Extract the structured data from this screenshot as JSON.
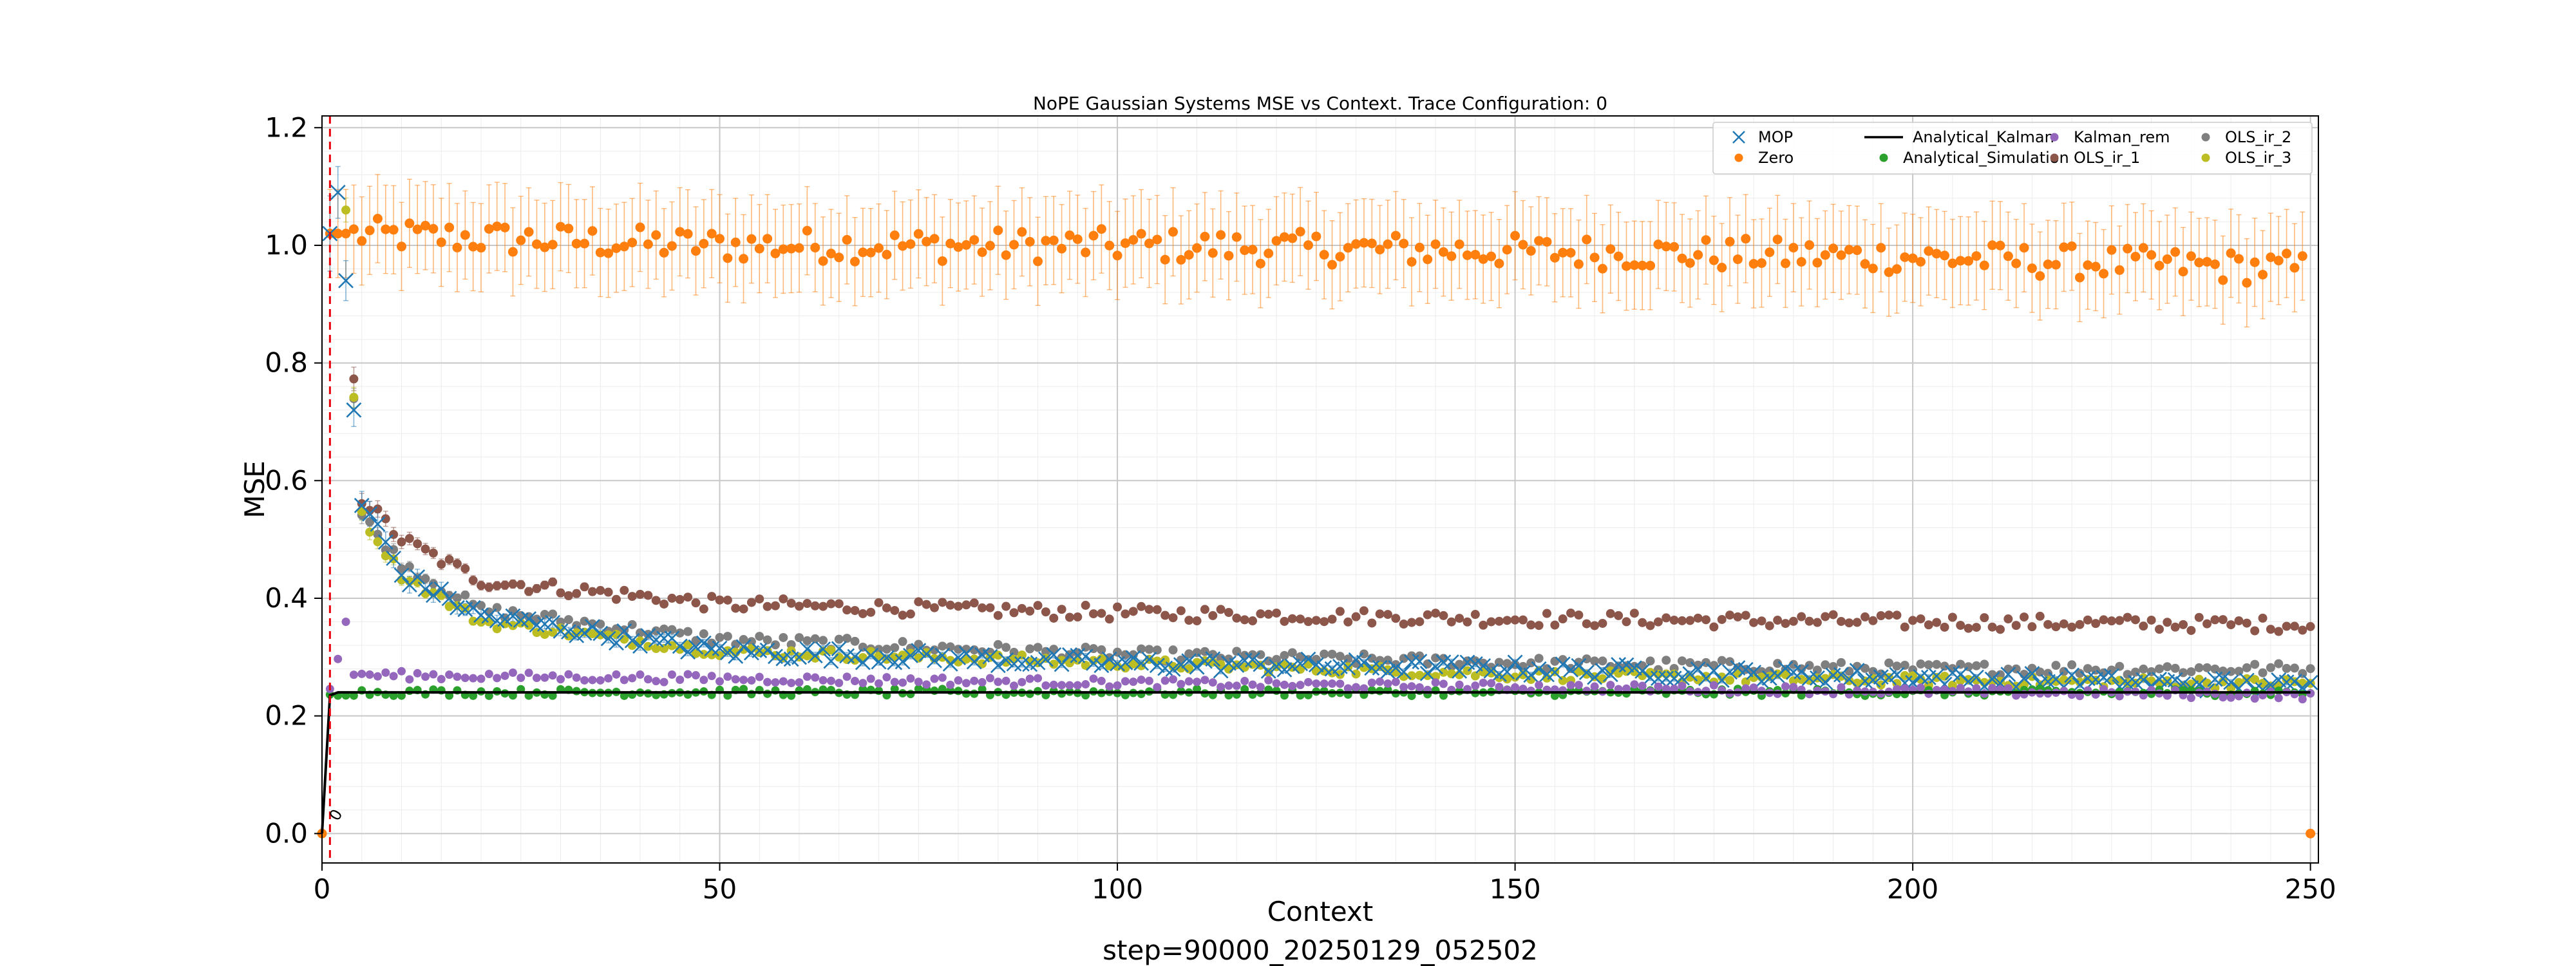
{
  "chart_data": {
    "type": "scatter",
    "title": "NoPE Gaussian Systems MSE vs Context. Trace Configuration: 0",
    "xlabel": "Context",
    "ylabel": "MSE",
    "footer": "step=90000_20250129_052502",
    "xlim": [
      0,
      251
    ],
    "ylim": [
      -0.05,
      1.22
    ],
    "xticks": [
      0,
      50,
      100,
      150,
      200,
      250
    ],
    "yticks": [
      0.0,
      0.2,
      0.4,
      0.6,
      0.8,
      1.0,
      1.2
    ],
    "xtick_labels": [
      "0",
      "50",
      "100",
      "150",
      "200",
      "250"
    ],
    "ytick_labels": [
      "0.0",
      "0.2",
      "0.4",
      "0.6",
      "0.8",
      "1.0",
      "1.2"
    ],
    "grid": true,
    "minor_grid": true,
    "legend_position": "top-right",
    "vline": {
      "x": 1,
      "color": "#e8000b",
      "style": "dashed"
    },
    "annotation": {
      "text": "0",
      "x": 2,
      "y": 0.02
    },
    "x_range": [
      0,
      250
    ],
    "series": [
      {
        "name": "MOP",
        "color": "#1f77b4",
        "marker": "x",
        "values_sampled": {
          "1": 1.02,
          "2": 1.09,
          "3": 0.94,
          "4": 0.72,
          "5": 0.56,
          "7": 0.52,
          "10": 0.44,
          "20": 0.37,
          "50": 0.31,
          "100": 0.29,
          "150": 0.28,
          "200": 0.265,
          "250": 0.25
        }
      },
      {
        "name": "Zero",
        "color": "#ff7f0e",
        "marker": "o",
        "values_sampled": {
          "0": 0.0,
          "1": 1.02,
          "50": 1.0,
          "100": 1.0,
          "150": 0.99,
          "200": 0.98,
          "249": 0.96,
          "250": 0.0
        }
      },
      {
        "name": "Analytical_Kalman",
        "color": "#000000",
        "marker": "line",
        "values_sampled": {
          "0": 0.0,
          "1": 0.235,
          "2": 0.24,
          "250": 0.24
        }
      },
      {
        "name": "Analytical_Simulation",
        "color": "#2ca02c",
        "marker": "o",
        "values_sampled": {
          "1": 0.24,
          "250": 0.24
        }
      },
      {
        "name": "Kalman_rem",
        "color": "#9467bd",
        "marker": "o",
        "values_sampled": {
          "1": 0.24,
          "3": 0.36,
          "4": 0.27,
          "250": 0.235
        }
      },
      {
        "name": "OLS_ir_1",
        "color": "#8c564b",
        "marker": "o",
        "values_sampled": {
          "4": 0.78,
          "5": 0.57,
          "10": 0.5,
          "20": 0.43,
          "50": 0.39,
          "100": 0.375,
          "150": 0.365,
          "200": 0.36,
          "250": 0.355
        }
      },
      {
        "name": "OLS_ir_2",
        "color": "#7f7f7f",
        "marker": "o",
        "values_sampled": {
          "4": 0.74,
          "5": 0.54,
          "10": 0.46,
          "20": 0.38,
          "50": 0.33,
          "100": 0.305,
          "150": 0.29,
          "200": 0.28,
          "250": 0.28
        }
      },
      {
        "name": "OLS_ir_3",
        "color": "#bcbd22",
        "marker": "o",
        "values_sampled": {
          "3": 1.06,
          "4": 0.75,
          "5": 0.54,
          "10": 0.44,
          "20": 0.36,
          "50": 0.31,
          "100": 0.29,
          "150": 0.27,
          "200": 0.26,
          "250": 0.255
        }
      }
    ]
  }
}
